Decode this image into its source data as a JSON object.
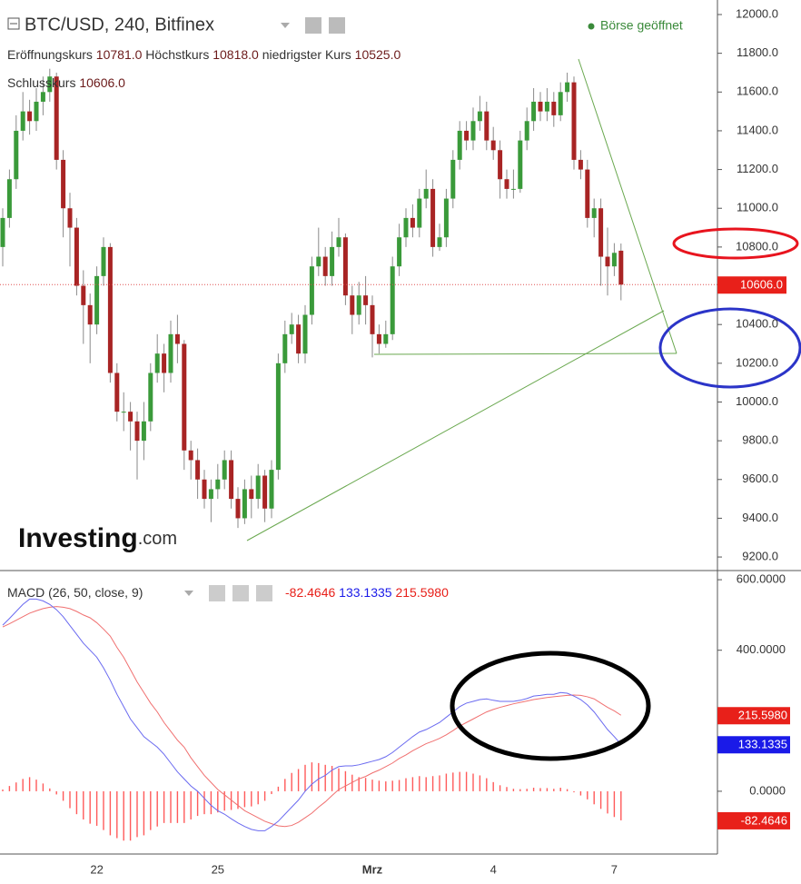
{
  "chart_data": [
    {
      "type": "candlestick",
      "title": "BTC/USD, 240, Bitfinex",
      "status": "Börse geöffnet",
      "ohlc_legend": [
        [
          "Eröffnungskurs",
          "10781.0"
        ],
        [
          "Höchstkurs",
          "10818.0"
        ],
        [
          "niedrigster Kurs",
          "10525.0"
        ],
        [
          "Schlusskurs",
          "10606.0"
        ]
      ],
      "logo": [
        "Investing",
        ".com"
      ],
      "last_price_label": "10606.0",
      "up_color": "#3a9a3a",
      "down_color": "#a82424",
      "wick_color": "#8a8a8a",
      "price_line_color": "#e05050",
      "price_box_color": "#e8201a",
      "categories": [
        null,
        null,
        null,
        null,
        null,
        null,
        null,
        null,
        null,
        null,
        null,
        null,
        null,
        null,
        "22",
        null,
        null,
        null,
        null,
        null,
        null,
        null,
        null,
        null,
        null,
        null,
        null,
        null,
        null,
        null,
        null,
        null,
        "25",
        null,
        null,
        null,
        null,
        null,
        null,
        null,
        null,
        null,
        null,
        null,
        null,
        null,
        null,
        null,
        null,
        null,
        null,
        null,
        null,
        null,
        null,
        "Mrz",
        null,
        null,
        null,
        null,
        null,
        null,
        null,
        null,
        null,
        null,
        null,
        null,
        null,
        null,
        null,
        null,
        null,
        "4",
        null,
        null,
        null,
        null,
        null,
        null,
        null,
        null,
        null,
        null,
        null,
        null,
        null,
        null,
        null,
        null,
        null,
        "7",
        null
      ],
      "open": [
        10800,
        10950,
        11150,
        11400,
        11500,
        11450,
        11550,
        11600,
        11680,
        11250,
        11000,
        10900,
        10600,
        10500,
        10400,
        10650,
        10800,
        10150,
        9950,
        9950,
        9900,
        9800,
        9900,
        10150,
        10250,
        10150,
        10350,
        10300,
        9750,
        9700,
        9600,
        9500,
        9550,
        9600,
        9700,
        9500,
        9400,
        9550,
        9500,
        9620,
        9450,
        9650,
        10200,
        10350,
        10400,
        10250,
        10450,
        10700,
        10750,
        10650,
        10800,
        10850,
        10550,
        10450,
        10550,
        10500,
        10350,
        10300,
        10350,
        10700,
        10850,
        10950,
        10900,
        11050,
        11100,
        10800,
        10850,
        11050,
        11250,
        11400,
        11350,
        11450,
        11500,
        11350,
        11300,
        11150,
        11100,
        11100,
        11350,
        11450,
        11550,
        11500,
        11550,
        11480,
        11600,
        11650,
        11250,
        11200,
        10950,
        11000,
        10750,
        10700,
        10781
      ],
      "high": [
        11000,
        11200,
        11480,
        11600,
        11560,
        11620,
        11680,
        11720,
        11700,
        11300,
        11080,
        10950,
        10680,
        10560,
        10700,
        10850,
        10820,
        10200,
        10050,
        10000,
        9950,
        10000,
        10200,
        10350,
        10300,
        10420,
        10450,
        10320,
        9800,
        9760,
        9650,
        9600,
        9680,
        9750,
        9750,
        9560,
        9600,
        9620,
        9680,
        9650,
        9700,
        10250,
        10420,
        10460,
        10450,
        10500,
        10750,
        10900,
        10800,
        10880,
        10950,
        10870,
        10600,
        10620,
        10650,
        10550,
        10400,
        10420,
        10750,
        10920,
        11000,
        11020,
        11100,
        11200,
        11150,
        10920,
        11100,
        11300,
        11450,
        11450,
        11520,
        11580,
        11550,
        11420,
        11350,
        11200,
        11200,
        11400,
        11520,
        11620,
        11600,
        11620,
        11600,
        11650,
        11700,
        11680,
        11300,
        11250,
        11050,
        11050,
        10900,
        10820,
        10818
      ],
      "low": [
        10700,
        10900,
        11100,
        11350,
        11380,
        11400,
        11480,
        11550,
        11200,
        10850,
        10700,
        10550,
        10300,
        10200,
        10350,
        10600,
        10100,
        9900,
        9850,
        9750,
        9600,
        9700,
        9850,
        10100,
        10050,
        10100,
        10200,
        9650,
        9600,
        9500,
        9450,
        9380,
        9500,
        9550,
        9450,
        9350,
        9370,
        9400,
        9450,
        9380,
        9400,
        9600,
        10150,
        10300,
        10200,
        10200,
        10400,
        10650,
        10600,
        10600,
        10750,
        10500,
        10350,
        10400,
        10400,
        10230,
        10250,
        10280,
        10320,
        10650,
        10800,
        10850,
        10850,
        11000,
        10750,
        10780,
        10800,
        11000,
        11200,
        11300,
        11300,
        11400,
        11300,
        11250,
        11050,
        11050,
        11050,
        11080,
        11300,
        11400,
        11450,
        11450,
        11420,
        11450,
        11550,
        11200,
        11150,
        10900,
        10850,
        10600,
        10550,
        10650,
        10525
      ],
      "close": [
        10950,
        11150,
        11400,
        11500,
        11450,
        11550,
        11600,
        11680,
        11250,
        11000,
        10900,
        10600,
        10500,
        10400,
        10650,
        10800,
        10150,
        9950,
        9950,
        9900,
        9800,
        9900,
        10150,
        10250,
        10150,
        10350,
        10300,
        9750,
        9700,
        9600,
        9500,
        9550,
        9600,
        9700,
        9500,
        9400,
        9550,
        9500,
        9620,
        9450,
        9650,
        10200,
        10350,
        10400,
        10250,
        10450,
        10700,
        10750,
        10650,
        10800,
        10850,
        10550,
        10450,
        10550,
        10500,
        10350,
        10300,
        10350,
        10700,
        10850,
        10950,
        10900,
        11050,
        11100,
        10800,
        10850,
        11050,
        11250,
        11400,
        11350,
        11450,
        11500,
        11350,
        11300,
        11150,
        11100,
        11100,
        11350,
        11450,
        11550,
        11500,
        11550,
        11480,
        11600,
        11650,
        11250,
        11200,
        10950,
        11000,
        10750,
        10700,
        10770,
        10606
      ],
      "ylim": [
        9130,
        12075
      ],
      "yticks": [
        {
          "value": 9200,
          "label": "9200.0"
        },
        {
          "value": 9400,
          "label": "9400.0"
        },
        {
          "value": 9600,
          "label": "9600.0"
        },
        {
          "value": 9800,
          "label": "9800.0"
        },
        {
          "value": 10000,
          "label": "10000.0"
        },
        {
          "value": 10200,
          "label": "10200.0"
        },
        {
          "value": 10400,
          "label": "10400.0"
        },
        {
          "value": 10600,
          "label": "10600.0"
        },
        {
          "value": 10800,
          "label": "10800.0"
        },
        {
          "value": 11000,
          "label": "11000.0"
        },
        {
          "value": 11200,
          "label": "11200.0"
        },
        {
          "value": 11400,
          "label": "11400.0"
        },
        {
          "value": 11600,
          "label": "11600.0"
        },
        {
          "value": 11800,
          "label": "11800.0"
        },
        {
          "value": 12000,
          "label": "12000.0"
        }
      ]
    },
    {
      "type": "macd",
      "title": "MACD (26, 50, close, 9)",
      "value_labels": [
        "-82.4646",
        "133.1335",
        "215.5980"
      ],
      "macd_color": "#6a6af0",
      "signal_color": "#f07070",
      "histogram_color": "#ff5a5a",
      "box_red": "#e8201a",
      "box_blue": "#1a1ae8",
      "macd": [
        471,
        490,
        510,
        530,
        545,
        545,
        540,
        530,
        515,
        495,
        470,
        445,
        420,
        400,
        380,
        350,
        315,
        275,
        240,
        205,
        180,
        155,
        140,
        125,
        105,
        80,
        55,
        35,
        15,
        0,
        -20,
        -40,
        -55,
        -65,
        -78,
        -90,
        -100,
        -108,
        -112,
        -112,
        -100,
        -85,
        -65,
        -45,
        -25,
        0,
        20,
        35,
        45,
        60,
        70,
        72,
        72,
        75,
        80,
        85,
        90,
        98,
        110,
        125,
        140,
        155,
        168,
        175,
        185,
        195,
        210,
        225,
        240,
        250,
        255,
        260,
        262,
        258,
        255,
        255,
        255,
        258,
        263,
        270,
        272,
        275,
        275,
        280,
        278,
        270,
        260,
        245,
        225,
        200,
        175,
        155,
        133.1335
      ],
      "signal": [
        466,
        475,
        485,
        495,
        505,
        512,
        518,
        522,
        524,
        522,
        518,
        510,
        500,
        492,
        478,
        460,
        440,
        408,
        380,
        345,
        310,
        280,
        250,
        225,
        195,
        170,
        145,
        125,
        95,
        70,
        45,
        25,
        5,
        -10,
        -25,
        -40,
        -55,
        -65,
        -75,
        -85,
        -92,
        -98,
        -100,
        -97,
        -88,
        -75,
        -62,
        -45,
        -30,
        -12,
        5,
        15,
        25,
        35,
        42,
        52,
        60,
        70,
        80,
        93,
        103,
        115,
        125,
        135,
        142,
        150,
        160,
        172,
        185,
        195,
        205,
        215,
        225,
        232,
        238,
        243,
        248,
        252,
        256,
        260,
        263,
        266,
        268,
        270,
        272,
        273,
        272,
        268,
        262,
        250,
        238,
        228,
        215.598
      ],
      "histogram": [
        5,
        15,
        25,
        35,
        40,
        33,
        22,
        8,
        -9,
        -27,
        -48,
        -65,
        -80,
        -92,
        -98,
        -110,
        -125,
        -133,
        -140,
        -140,
        -130,
        -125,
        -110,
        -100,
        -90,
        -90,
        -90,
        -90,
        -80,
        -70,
        -65,
        -65,
        -60,
        -55,
        -53,
        -50,
        -45,
        -43,
        -37,
        -27,
        -8,
        13,
        35,
        52,
        63,
        75,
        82,
        80,
        75,
        72,
        65,
        57,
        47,
        40,
        38,
        33,
        30,
        28,
        30,
        32,
        37,
        40,
        43,
        40,
        43,
        45,
        50,
        53,
        55,
        55,
        50,
        45,
        37,
        26,
        17,
        12,
        7,
        6,
        7,
        10,
        9,
        9,
        7,
        10,
        6,
        -3,
        -12,
        -23,
        -37,
        -50,
        -63,
        -73,
        -82.4646
      ],
      "ylim": [
        -178,
        626
      ],
      "yticks": [
        {
          "value": 0,
          "label": "0.0000"
        },
        {
          "value": 400,
          "label": "400.0000"
        },
        {
          "value": 600,
          "label": "600.0000"
        }
      ]
    }
  ]
}
